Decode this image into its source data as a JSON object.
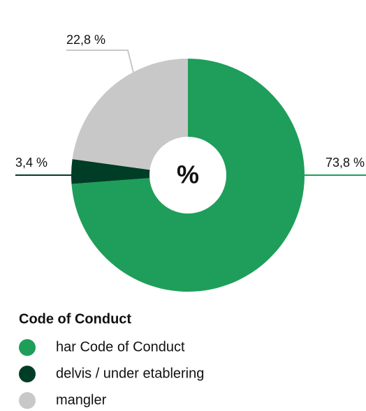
{
  "chart_data": {
    "type": "donut",
    "center_label": "%",
    "legend_title": "Code of Conduct",
    "categories": [
      "har Code of Conduct",
      "delvis / under etablering",
      "mangler"
    ],
    "values": [
      73.8,
      3.4,
      22.8
    ],
    "value_labels": [
      "73,8 %",
      "3,4 %",
      "22,8 %"
    ],
    "colors": [
      "#1e9e5a",
      "#003d26",
      "#c8c8c8"
    ]
  }
}
